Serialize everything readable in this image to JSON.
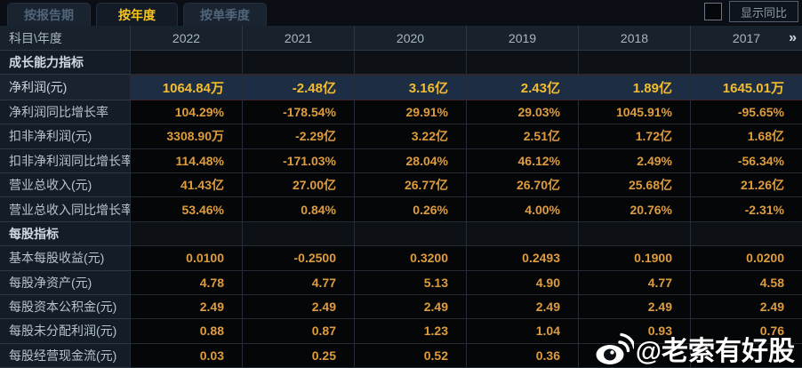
{
  "tabs": [
    {
      "id": "by-report-period",
      "label": "按报告期",
      "active": false
    },
    {
      "id": "by-year",
      "label": "按年度",
      "active": true
    },
    {
      "id": "by-single-quarter",
      "label": "按单季度",
      "active": false
    }
  ],
  "controls": {
    "show_yoy_label": "显示同比",
    "show_yoy_checked": false,
    "more_years_icon": "»"
  },
  "table": {
    "corner_label": "科目\\年度",
    "years": [
      "2022",
      "2021",
      "2020",
      "2019",
      "2018",
      "2017"
    ],
    "rows": [
      {
        "type": "section",
        "label": "成长能力指标"
      },
      {
        "type": "data",
        "label": "净利润(元)",
        "highlight": true,
        "values": [
          "1064.84万",
          "-2.48亿",
          "3.16亿",
          "2.43亿",
          "1.89亿",
          "1645.01万"
        ]
      },
      {
        "type": "data",
        "label": "净利润同比增长率",
        "values": [
          "104.29%",
          "-178.54%",
          "29.91%",
          "29.03%",
          "1045.91%",
          "-95.65%"
        ]
      },
      {
        "type": "data",
        "label": "扣非净利润(元)",
        "values": [
          "3308.90万",
          "-2.29亿",
          "3.22亿",
          "2.51亿",
          "1.72亿",
          "1.68亿"
        ]
      },
      {
        "type": "data",
        "label": "扣非净利润同比增长率",
        "values": [
          "114.48%",
          "-171.03%",
          "28.04%",
          "46.12%",
          "2.49%",
          "-56.34%"
        ]
      },
      {
        "type": "data",
        "label": "营业总收入(元)",
        "values": [
          "41.43亿",
          "27.00亿",
          "26.77亿",
          "26.70亿",
          "25.68亿",
          "21.26亿"
        ]
      },
      {
        "type": "data",
        "label": "营业总收入同比增长率",
        "values": [
          "53.46%",
          "0.84%",
          "0.26%",
          "4.00%",
          "20.76%",
          "-2.31%"
        ]
      },
      {
        "type": "section",
        "label": "每股指标"
      },
      {
        "type": "data",
        "label": "基本每股收益(元)",
        "values": [
          "0.0100",
          "-0.2500",
          "0.3200",
          "0.2493",
          "0.1900",
          "0.0200"
        ]
      },
      {
        "type": "data",
        "label": "每股净资产(元)",
        "values": [
          "4.78",
          "4.77",
          "5.13",
          "4.90",
          "4.77",
          "4.58"
        ]
      },
      {
        "type": "data",
        "label": "每股资本公积金(元)",
        "values": [
          "2.49",
          "2.49",
          "2.49",
          "2.49",
          "2.49",
          "2.49"
        ]
      },
      {
        "type": "data",
        "label": "每股未分配利润(元)",
        "values": [
          "0.88",
          "0.87",
          "1.23",
          "1.04",
          "0.93",
          "0.76"
        ]
      },
      {
        "type": "data",
        "label": "每股经营现金流(元)",
        "values": [
          "0.03",
          "0.25",
          "0.52",
          "0.36",
          "",
          ""
        ]
      }
    ]
  },
  "watermark": {
    "handle": "@老索有好股",
    "icon": "weibo-icon"
  },
  "colors": {
    "active_tab_text": "#f5c51e",
    "value_orange": "#df9c3d",
    "highlight_value_yellow": "#f3bd2e",
    "highlight_row_bg": "#1c2d44",
    "label_text": "#b6c2cd"
  }
}
